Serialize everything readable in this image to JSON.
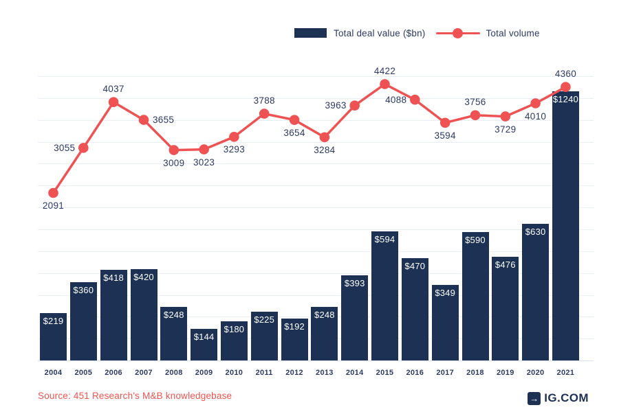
{
  "colors": {
    "bar_navy": "#1c3153",
    "label_navy": "#2c3a63",
    "line_coral": "#ee5253",
    "source_coral": "#f4524e",
    "grid": "#e9eef5",
    "axis_line": "#d9e2ec",
    "bar_label_text": "#ffffff"
  },
  "legend": {
    "items": [
      {
        "label": "Total deal value ($bn)",
        "swatch": "bar"
      },
      {
        "label": "Total volume",
        "swatch": "line-dot"
      }
    ]
  },
  "footer": {
    "source": "Source: 451 Research's M&B knowledgebase",
    "brand": "IG.COM",
    "brand_arrow": "→"
  },
  "chart_data": {
    "type": "bar",
    "subtype": "bar+line combo",
    "categories": [
      "2004",
      "2005",
      "2006",
      "2007",
      "2008",
      "2009",
      "2010",
      "2011",
      "2012",
      "2013",
      "2014",
      "2015",
      "2016",
      "2017",
      "2018",
      "2019",
      "2020",
      "2021"
    ],
    "series": [
      {
        "name": "Total deal value ($bn)",
        "type": "bar",
        "values": [
          219,
          360,
          418,
          420,
          248,
          144,
          180,
          225,
          192,
          248,
          393,
          594,
          470,
          349,
          590,
          476,
          630,
          1240
        ],
        "labels": [
          "$219",
          "$360",
          "$418",
          "$420",
          "$248",
          "$144",
          "$180",
          "$225",
          "$192",
          "$248",
          "$393",
          "$594",
          "$470",
          "$349",
          "$590",
          "$476",
          "$630",
          "$1240"
        ],
        "label_position": "inside-top",
        "color": "#1c3153"
      },
      {
        "name": "Total volume",
        "type": "line",
        "values": [
          2091,
          3055,
          4037,
          3655,
          3009,
          3023,
          3293,
          3788,
          3654,
          3284,
          3963,
          4422,
          4088,
          3594,
          3756,
          3729,
          4010,
          4360
        ],
        "labels": [
          "2091",
          "3055",
          "4037",
          "3655",
          "3009",
          "3023",
          "3293",
          "3788",
          "3654",
          "3284",
          "3963",
          "4422",
          "4088",
          "3594",
          "3756",
          "3729",
          "4010",
          "4360"
        ],
        "label_placement": [
          "below",
          "left",
          "above",
          "right",
          "below",
          "below",
          "below",
          "above",
          "below",
          "below",
          "left",
          "above",
          "left",
          "below",
          "above",
          "below",
          "below",
          "above"
        ],
        "color": "#ee5253"
      }
    ],
    "bar_axis": {
      "min": 0,
      "max": 1390,
      "ticks_visible": false
    },
    "volume_axis": {
      "ticks_visible": false
    },
    "grid": {
      "horizontal": true,
      "vertical": false,
      "line_count": 14
    },
    "legend_position": "top-center",
    "title": "",
    "xlabel": "",
    "ylabel": ""
  }
}
